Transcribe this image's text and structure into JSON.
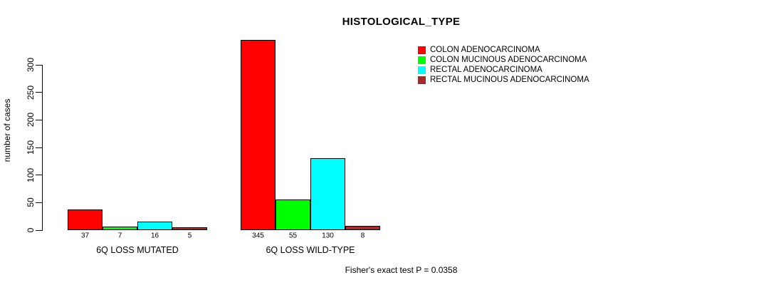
{
  "chart_data": {
    "type": "bar",
    "title": "HISTOLOGICAL_TYPE",
    "ylabel": "number of cases",
    "xlabel": "",
    "categories": [
      "6Q LOSS MUTATED",
      "6Q LOSS WILD-TYPE"
    ],
    "series": [
      {
        "name": "COLON ADENOCARCINOMA",
        "color": "#FF0000",
        "values": [
          37,
          345
        ]
      },
      {
        "name": "COLON MUCINOUS ADENOCARCINOMA",
        "color": "#00FF00",
        "values": [
          7,
          55
        ]
      },
      {
        "name": "RECTAL ADENOCARCINOMA",
        "color": "#00FFFF",
        "values": [
          16,
          130
        ]
      },
      {
        "name": "RECTAL MUCINOUS ADENOCARCINOMA",
        "color": "#A52A2A",
        "values": [
          5,
          8
        ]
      }
    ],
    "yticks": [
      0,
      50,
      100,
      150,
      200,
      250,
      300
    ],
    "ylim": [
      0,
      345
    ],
    "grid": false,
    "legend_position": "top-right",
    "bar_value_labels": true,
    "annotation": "Fisher's exact test P = 0.0358"
  }
}
